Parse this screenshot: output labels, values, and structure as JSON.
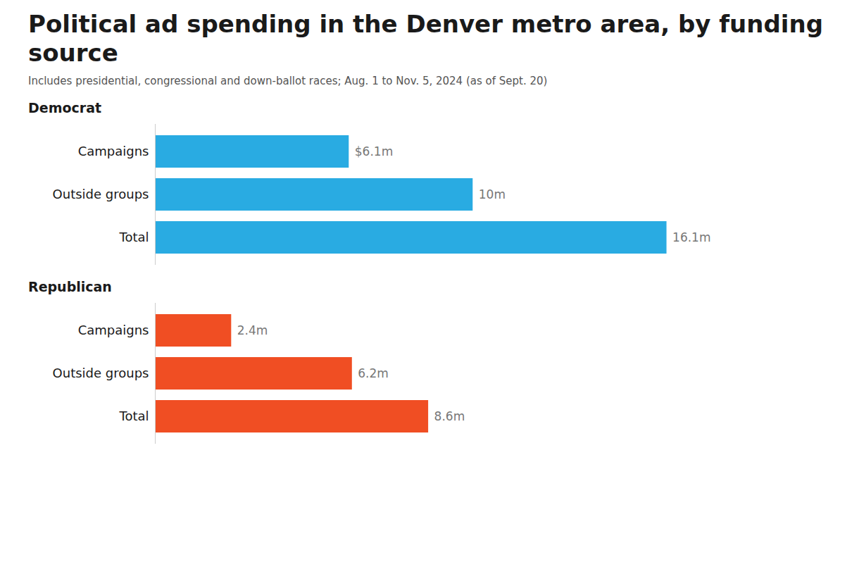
{
  "chart_data": {
    "type": "bar",
    "orientation": "horizontal",
    "title": "Political ad spending in the Denver metro area, by funding source",
    "subtitle": "Includes presidential, congressional and down-ballot races; Aug. 1 to Nov. 5, 2024 (as of Sept. 20)",
    "categories": [
      "Campaigns",
      "Outside groups",
      "Total"
    ],
    "series": [
      {
        "name": "Democrat",
        "color": "#29ABE2",
        "values": [
          6.1,
          10.0,
          16.1
        ],
        "value_labels": [
          "$6.1m",
          "10m",
          "16.1m"
        ]
      },
      {
        "name": "Republican",
        "color": "#F04E23",
        "values": [
          2.4,
          6.2,
          8.6
        ],
        "value_labels": [
          "2.4m",
          "6.2m",
          "8.6m"
        ]
      }
    ],
    "xlim": [
      0,
      19.5
    ],
    "data_labels": true,
    "tick_labels": "y",
    "grid": false
  }
}
